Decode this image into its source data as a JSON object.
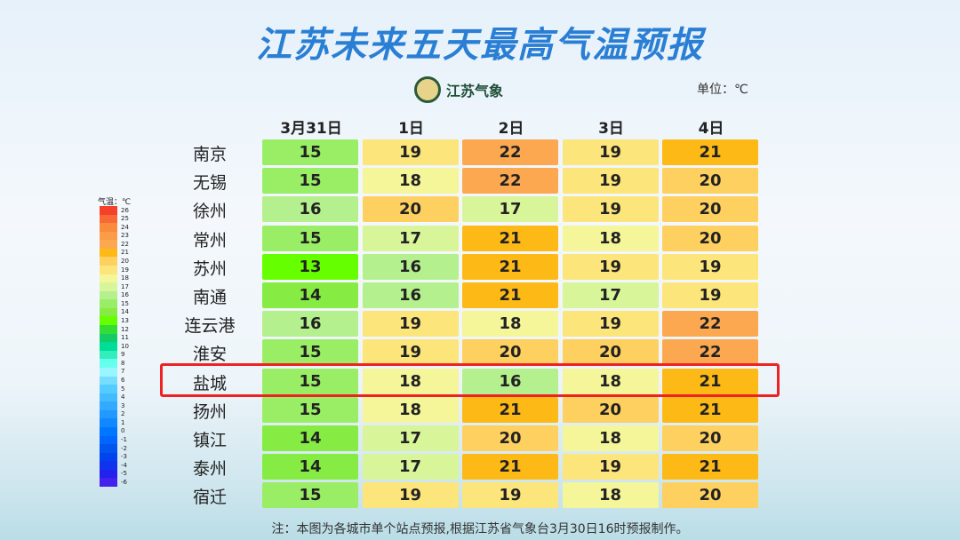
{
  "header": {
    "title": "江苏未来五天最高气温预报",
    "logo_text": "江苏气象",
    "unit": "单位：℃"
  },
  "table": {
    "columns": [
      "3月31日",
      "1日",
      "2日",
      "3日",
      "4日"
    ],
    "rows": [
      {
        "city": "南京",
        "values": [
          15,
          19,
          22,
          19,
          21
        ]
      },
      {
        "city": "无锡",
        "values": [
          15,
          18,
          22,
          19,
          20
        ]
      },
      {
        "city": "徐州",
        "values": [
          16,
          20,
          17,
          19,
          20
        ]
      },
      {
        "city": "常州",
        "values": [
          15,
          17,
          21,
          18,
          20
        ]
      },
      {
        "city": "苏州",
        "values": [
          13,
          16,
          21,
          19,
          19
        ]
      },
      {
        "city": "南通",
        "values": [
          14,
          16,
          21,
          17,
          19
        ]
      },
      {
        "city": "连云港",
        "values": [
          16,
          19,
          18,
          19,
          22
        ]
      },
      {
        "city": "淮安",
        "values": [
          15,
          19,
          20,
          20,
          22
        ]
      },
      {
        "city": "盐城",
        "values": [
          15,
          18,
          16,
          18,
          21
        ]
      },
      {
        "city": "扬州",
        "values": [
          15,
          18,
          21,
          20,
          21
        ]
      },
      {
        "city": "镇江",
        "values": [
          14,
          17,
          20,
          18,
          20
        ]
      },
      {
        "city": "泰州",
        "values": [
          14,
          17,
          21,
          19,
          21
        ]
      },
      {
        "city": "宿迁",
        "values": [
          15,
          19,
          19,
          18,
          20
        ]
      }
    ]
  },
  "legend": {
    "title": "气温：℃",
    "items": [
      {
        "value": 26,
        "color": "#f5402a"
      },
      {
        "value": 25,
        "color": "#f86a35"
      },
      {
        "value": 24,
        "color": "#fa8a3e"
      },
      {
        "value": 23,
        "color": "#fb9c48"
      },
      {
        "value": 22,
        "color": "#fca850"
      },
      {
        "value": 21,
        "color": "#fdb915"
      },
      {
        "value": 20,
        "color": "#fdd060"
      },
      {
        "value": 19,
        "color": "#fce57a"
      },
      {
        "value": 18,
        "color": "#f5f59a"
      },
      {
        "value": 17,
        "color": "#d8f59a"
      },
      {
        "value": 16,
        "color": "#b5f08e"
      },
      {
        "value": 15,
        "color": "#9aee66"
      },
      {
        "value": 14,
        "color": "#86ec44"
      },
      {
        "value": 13,
        "color": "#66ff00"
      },
      {
        "value": 12,
        "color": "#33dd33"
      },
      {
        "value": 11,
        "color": "#14cc66"
      },
      {
        "value": 10,
        "color": "#00dd99"
      },
      {
        "value": 9,
        "color": "#33eebb"
      },
      {
        "value": 8,
        "color": "#66ffee"
      },
      {
        "value": 7,
        "color": "#99f5ff"
      },
      {
        "value": 6,
        "color": "#77ddff"
      },
      {
        "value": 5,
        "color": "#55ccff"
      },
      {
        "value": 4,
        "color": "#44bbff"
      },
      {
        "value": 3,
        "color": "#33aaff"
      },
      {
        "value": 2,
        "color": "#2299ff"
      },
      {
        "value": 1,
        "color": "#1188ff"
      },
      {
        "value": 0,
        "color": "#0077ff"
      },
      {
        "value": -1,
        "color": "#0066ff"
      },
      {
        "value": -2,
        "color": "#0055ee"
      },
      {
        "value": -3,
        "color": "#0044ee"
      },
      {
        "value": -4,
        "color": "#1133ee"
      },
      {
        "value": -5,
        "color": "#2222ee"
      },
      {
        "value": -6,
        "color": "#4422ee"
      }
    ]
  },
  "note": "注：本图为各城市单个站点预报,根据江苏省气象台3月30日16时预报制作。"
}
